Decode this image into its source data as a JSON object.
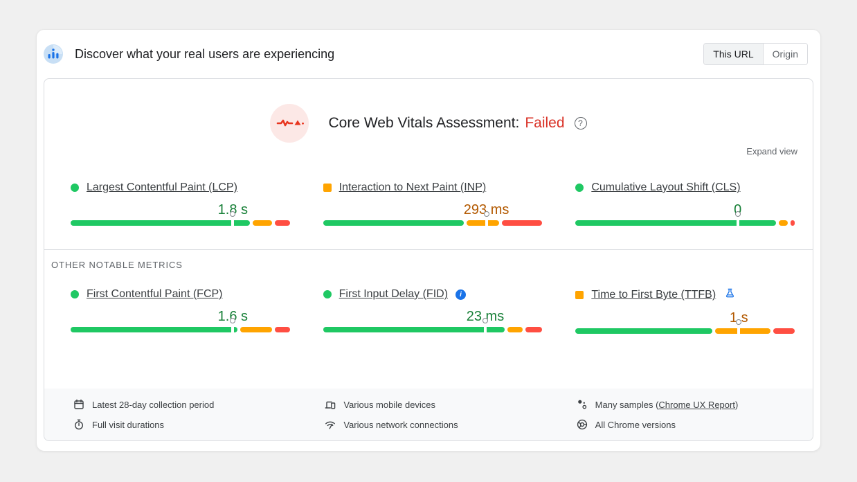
{
  "header": {
    "title": "Discover what your real users are experiencing",
    "toggle": {
      "this_url": "This URL",
      "origin": "Origin"
    }
  },
  "assessment": {
    "title": "Core Web Vitals Assessment:",
    "result": "Failed",
    "help_glyph": "?",
    "expand_label": "Expand view"
  },
  "section_labels": {
    "other_metrics": "OTHER NOTABLE METRICS"
  },
  "metrics": {
    "lcp": {
      "name": "Largest Contentful Paint (LCP)",
      "status": "good",
      "value": "1.8 s",
      "distribution": {
        "good": 84,
        "needs_improvement": 9,
        "poor": 7
      },
      "marker_percent": 74
    },
    "inp": {
      "name": "Interaction to Next Paint (INP)",
      "status": "average",
      "value": "293 ms",
      "distribution": {
        "good": 66,
        "needs_improvement": 15,
        "poor": 19
      },
      "marker_percent": 74.5
    },
    "cls": {
      "name": "Cumulative Layout Shift (CLS)",
      "status": "good",
      "value": "0",
      "distribution": {
        "good": 94,
        "needs_improvement": 4,
        "poor": 2
      },
      "marker_percent": 74
    },
    "fcp": {
      "name": "First Contentful Paint (FCP)",
      "status": "good",
      "value": "1.6 s",
      "distribution": {
        "good": 78,
        "needs_improvement": 15,
        "poor": 7
      },
      "marker_percent": 74
    },
    "fid": {
      "name": "First Input Delay (FID)",
      "status": "good",
      "value": "23 ms",
      "distribution": {
        "good": 85,
        "needs_improvement": 7,
        "poor": 8
      },
      "marker_percent": 74
    },
    "ttfb": {
      "name": "Time to First Byte (TTFB)",
      "status": "average",
      "value": "1 s",
      "distribution": {
        "good": 64,
        "needs_improvement": 26,
        "poor": 10
      },
      "marker_percent": 74.5
    }
  },
  "colors": {
    "good": "#1fc863",
    "needs_improvement": "#ffa400",
    "poor": "#ff4e42",
    "good_value_text": "#188038",
    "average_value_text": "#b35900",
    "failed_text": "#d93025",
    "accent_blue": "#1a73e8"
  },
  "footer": {
    "columns": [
      {
        "items": [
          {
            "icon": "calendar-icon",
            "text": "Latest 28-day collection period"
          },
          {
            "icon": "stopwatch-icon",
            "text": "Full visit durations"
          }
        ]
      },
      {
        "items": [
          {
            "icon": "devices-icon",
            "text": "Various mobile devices"
          },
          {
            "icon": "network-icon",
            "text": "Various network connections"
          }
        ]
      },
      {
        "items": [
          {
            "icon": "samples-icon",
            "prefix": "Many samples (",
            "link": "Chrome UX Report",
            "suffix": ")"
          },
          {
            "icon": "chrome-icon",
            "text": "All Chrome versions"
          }
        ]
      }
    ]
  }
}
